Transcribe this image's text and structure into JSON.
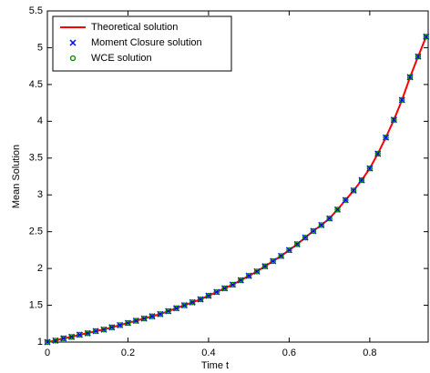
{
  "chart_data": {
    "type": "line",
    "xlabel": "Time t",
    "ylabel": "Mean Solution",
    "x": [
      0,
      0.02,
      0.04,
      0.06,
      0.08,
      0.1,
      0.12,
      0.14,
      0.16,
      0.18,
      0.2,
      0.22,
      0.24,
      0.26,
      0.28,
      0.3,
      0.32,
      0.34,
      0.36,
      0.38,
      0.4,
      0.42,
      0.44,
      0.46,
      0.48,
      0.5,
      0.52,
      0.54,
      0.56,
      0.58,
      0.6,
      0.62,
      0.64,
      0.66,
      0.68,
      0.7,
      0.72,
      0.74,
      0.76,
      0.78,
      0.8,
      0.82,
      0.84,
      0.86,
      0.88,
      0.9,
      0.92,
      0.94
    ],
    "series": [
      {
        "name": "Theoretical solution",
        "color": "#ff0000",
        "style": "line",
        "values": [
          1.0,
          1.02,
          1.05,
          1.07,
          1.1,
          1.12,
          1.15,
          1.17,
          1.2,
          1.23,
          1.26,
          1.29,
          1.32,
          1.35,
          1.38,
          1.42,
          1.46,
          1.5,
          1.54,
          1.58,
          1.63,
          1.68,
          1.73,
          1.78,
          1.84,
          1.9,
          1.96,
          2.03,
          2.1,
          2.17,
          2.25,
          2.33,
          2.42,
          2.51,
          2.59,
          2.68,
          2.8,
          2.93,
          3.06,
          3.2,
          3.36,
          3.56,
          3.78,
          4.02,
          4.29,
          4.6,
          4.88,
          5.15
        ]
      },
      {
        "name": "Moment Closure solution",
        "color": "#0000ff",
        "style": "x",
        "values": [
          1.0,
          1.02,
          1.05,
          1.07,
          1.1,
          1.12,
          1.15,
          1.17,
          1.2,
          1.23,
          1.26,
          1.29,
          1.32,
          1.35,
          1.38,
          1.42,
          1.46,
          1.5,
          1.54,
          1.58,
          1.63,
          1.68,
          1.73,
          1.78,
          1.84,
          1.9,
          1.96,
          2.03,
          2.1,
          2.17,
          2.25,
          2.33,
          2.42,
          2.51,
          2.59,
          2.68,
          2.8,
          2.93,
          3.06,
          3.2,
          3.36,
          3.56,
          3.78,
          4.02,
          4.29,
          4.6,
          4.88,
          5.15
        ]
      },
      {
        "name": "WCE solution",
        "color": "#008000",
        "style": "o",
        "values": [
          1.0,
          1.02,
          1.05,
          1.07,
          1.1,
          1.12,
          1.15,
          1.17,
          1.2,
          1.23,
          1.26,
          1.29,
          1.32,
          1.35,
          1.38,
          1.42,
          1.46,
          1.5,
          1.54,
          1.58,
          1.63,
          1.68,
          1.73,
          1.78,
          1.84,
          1.9,
          1.96,
          2.03,
          2.1,
          2.17,
          2.25,
          2.33,
          2.42,
          2.51,
          2.59,
          2.68,
          2.8,
          2.93,
          3.06,
          3.2,
          3.36,
          3.56,
          3.78,
          4.02,
          4.29,
          4.6,
          4.88,
          5.15
        ]
      }
    ],
    "xlim": [
      0,
      0.945
    ],
    "xticks": [
      0,
      0.2,
      0.4,
      0.6,
      0.8
    ],
    "ylim": [
      1,
      5.5
    ],
    "yticks": [
      1,
      1.5,
      2,
      2.5,
      3,
      3.5,
      4,
      4.5,
      5,
      5.5
    ],
    "grid": false,
    "legend": "upper-left"
  }
}
